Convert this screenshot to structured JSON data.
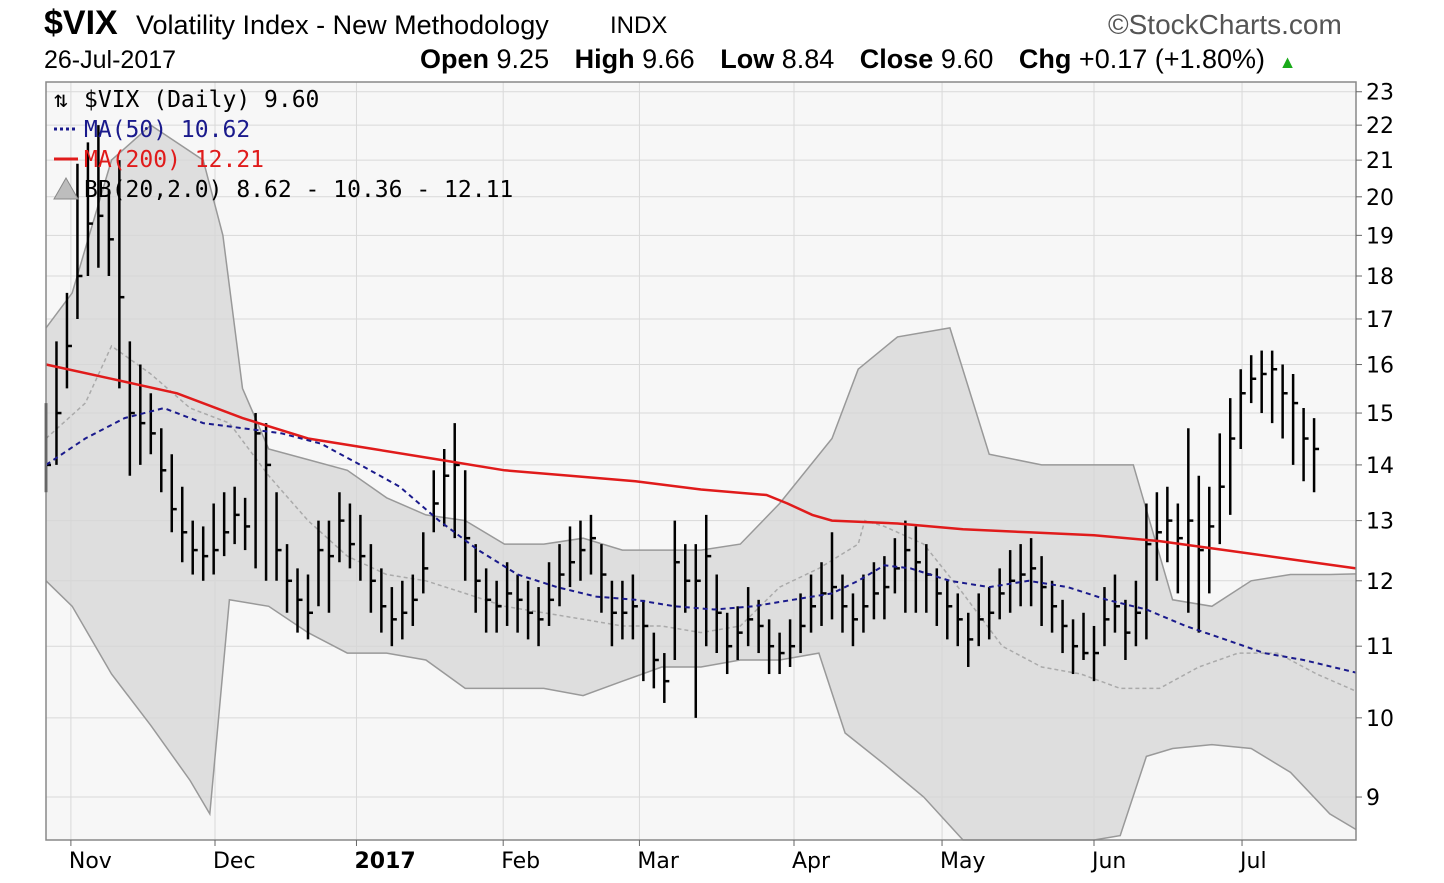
{
  "header": {
    "symbol": "$VIX",
    "name": "Volatility Index - New Methodology",
    "exchange": "INDX",
    "brand": "©StockCharts.com",
    "date": "26-Jul-2017",
    "open_label": "Open",
    "open": "9.25",
    "high_label": "High",
    "high": "9.66",
    "low_label": "Low",
    "low": "8.84",
    "close_label": "Close",
    "close": "9.60",
    "chg_label": "Chg",
    "chg": "+0.17 (+1.80%)",
    "chg_icon": "up-triangle-icon"
  },
  "legend": {
    "price": "$VIX (Daily) 9.60",
    "ma50": "MA(50) 10.62",
    "ma200": "MA(200) 12.21",
    "bb": "BB(20,2.0) 8.62 - 10.36 - 12.11"
  },
  "colors": {
    "price": "#000000",
    "ma50": "#1a1a8c",
    "ma200": "#e01b1b",
    "bb_fill": "#d6d6d6",
    "bb_mid": "#aaaaaa",
    "grid": "#d9d9d9",
    "plot_bg": "#f7f7f7"
  },
  "chart_data": {
    "type": "ohlc_bar",
    "ylim": [
      8.5,
      23.3
    ],
    "ylog": true,
    "yticks": [
      9,
      10,
      11,
      12,
      13,
      14,
      15,
      16,
      17,
      18,
      19,
      20,
      21,
      22,
      23
    ],
    "xlim": [
      0,
      1.0
    ],
    "xticks": [
      {
        "label": "Nov",
        "x": 0.019,
        "bold": false
      },
      {
        "label": "Dec",
        "x": 0.129,
        "bold": false
      },
      {
        "label": "2017",
        "x": 0.237,
        "bold": true
      },
      {
        "label": "Feb",
        "x": 0.349,
        "bold": false
      },
      {
        "label": "Mar",
        "x": 0.453,
        "bold": false
      },
      {
        "label": "Apr",
        "x": 0.571,
        "bold": false
      },
      {
        "label": "May",
        "x": 0.684,
        "bold": false
      },
      {
        "label": "Jun",
        "x": 0.8,
        "bold": false
      },
      {
        "label": "Jul",
        "x": 0.913,
        "bold": false
      }
    ],
    "ma200": [
      [
        0,
        16.0
      ],
      [
        0.05,
        15.7
      ],
      [
        0.1,
        15.4
      ],
      [
        0.15,
        14.9
      ],
      [
        0.2,
        14.5
      ],
      [
        0.25,
        14.3
      ],
      [
        0.3,
        14.1
      ],
      [
        0.35,
        13.9
      ],
      [
        0.4,
        13.8
      ],
      [
        0.45,
        13.7
      ],
      [
        0.5,
        13.55
      ],
      [
        0.55,
        13.45
      ],
      [
        0.566,
        13.3
      ],
      [
        0.585,
        13.1
      ],
      [
        0.6,
        13.0
      ],
      [
        0.65,
        12.95
      ],
      [
        0.7,
        12.85
      ],
      [
        0.75,
        12.8
      ],
      [
        0.8,
        12.75
      ],
      [
        0.85,
        12.65
      ],
      [
        0.9,
        12.5
      ],
      [
        0.95,
        12.35
      ],
      [
        1.0,
        12.2
      ]
    ],
    "ma50": [
      [
        0,
        14.0
      ],
      [
        0.03,
        14.5
      ],
      [
        0.06,
        14.9
      ],
      [
        0.09,
        15.1
      ],
      [
        0.12,
        14.8
      ],
      [
        0.15,
        14.7
      ],
      [
        0.18,
        14.6
      ],
      [
        0.21,
        14.4
      ],
      [
        0.24,
        14.0
      ],
      [
        0.27,
        13.6
      ],
      [
        0.3,
        13.0
      ],
      [
        0.33,
        12.5
      ],
      [
        0.36,
        12.1
      ],
      [
        0.39,
        11.9
      ],
      [
        0.42,
        11.75
      ],
      [
        0.45,
        11.7
      ],
      [
        0.48,
        11.6
      ],
      [
        0.51,
        11.55
      ],
      [
        0.54,
        11.6
      ],
      [
        0.57,
        11.7
      ],
      [
        0.6,
        11.8
      ],
      [
        0.62,
        12.0
      ],
      [
        0.64,
        12.25
      ],
      [
        0.66,
        12.2
      ],
      [
        0.69,
        12.0
      ],
      [
        0.72,
        11.9
      ],
      [
        0.75,
        12.0
      ],
      [
        0.78,
        11.9
      ],
      [
        0.81,
        11.7
      ],
      [
        0.84,
        11.55
      ],
      [
        0.87,
        11.3
      ],
      [
        0.9,
        11.1
      ],
      [
        0.93,
        10.9
      ],
      [
        0.96,
        10.8
      ],
      [
        1.0,
        10.62
      ]
    ],
    "bb_mid": [
      [
        0,
        14.5
      ],
      [
        0.03,
        15.2
      ],
      [
        0.05,
        16.4
      ],
      [
        0.08,
        15.8
      ],
      [
        0.11,
        15.1
      ],
      [
        0.14,
        14.8
      ],
      [
        0.17,
        13.8
      ],
      [
        0.2,
        13.0
      ],
      [
        0.23,
        12.4
      ],
      [
        0.26,
        12.1
      ],
      [
        0.29,
        12.0
      ],
      [
        0.32,
        11.8
      ],
      [
        0.35,
        11.6
      ],
      [
        0.38,
        11.5
      ],
      [
        0.41,
        11.4
      ],
      [
        0.44,
        11.3
      ],
      [
        0.47,
        11.3
      ],
      [
        0.5,
        11.2
      ],
      [
        0.53,
        11.3
      ],
      [
        0.56,
        11.9
      ],
      [
        0.59,
        12.2
      ],
      [
        0.62,
        12.6
      ],
      [
        0.625,
        13.0
      ],
      [
        0.64,
        12.9
      ],
      [
        0.67,
        12.6
      ],
      [
        0.7,
        11.8
      ],
      [
        0.73,
        11.0
      ],
      [
        0.76,
        10.7
      ],
      [
        0.79,
        10.6
      ],
      [
        0.82,
        10.4
      ],
      [
        0.85,
        10.4
      ],
      [
        0.88,
        10.7
      ],
      [
        0.91,
        10.9
      ],
      [
        0.94,
        10.9
      ],
      [
        0.97,
        10.6
      ],
      [
        1.0,
        10.36
      ]
    ],
    "bb_upper": [
      [
        0,
        16.8
      ],
      [
        0.02,
        17.6
      ],
      [
        0.05,
        21.0
      ],
      [
        0.08,
        22.0
      ],
      [
        0.12,
        21.0
      ],
      [
        0.135,
        19.0
      ],
      [
        0.15,
        15.5
      ],
      [
        0.17,
        14.3
      ],
      [
        0.2,
        14.1
      ],
      [
        0.23,
        13.9
      ],
      [
        0.26,
        13.4
      ],
      [
        0.29,
        13.1
      ],
      [
        0.32,
        13.0
      ],
      [
        0.35,
        12.6
      ],
      [
        0.38,
        12.6
      ],
      [
        0.41,
        12.7
      ],
      [
        0.44,
        12.5
      ],
      [
        0.47,
        12.5
      ],
      [
        0.5,
        12.5
      ],
      [
        0.53,
        12.6
      ],
      [
        0.56,
        13.3
      ],
      [
        0.6,
        14.5
      ],
      [
        0.62,
        15.9
      ],
      [
        0.65,
        16.6
      ],
      [
        0.69,
        16.8
      ],
      [
        0.72,
        14.2
      ],
      [
        0.76,
        14.0
      ],
      [
        0.8,
        14.0
      ],
      [
        0.83,
        14.0
      ],
      [
        0.86,
        11.7
      ],
      [
        0.89,
        11.6
      ],
      [
        0.92,
        12.0
      ],
      [
        0.95,
        12.1
      ],
      [
        0.98,
        12.1
      ],
      [
        1.0,
        12.11
      ]
    ],
    "bb_lower": [
      [
        0,
        12.0
      ],
      [
        0.02,
        11.6
      ],
      [
        0.05,
        10.6
      ],
      [
        0.08,
        9.9
      ],
      [
        0.11,
        9.2
      ],
      [
        0.125,
        8.8
      ],
      [
        0.14,
        11.7
      ],
      [
        0.17,
        11.6
      ],
      [
        0.2,
        11.2
      ],
      [
        0.23,
        10.9
      ],
      [
        0.26,
        10.9
      ],
      [
        0.29,
        10.8
      ],
      [
        0.32,
        10.4
      ],
      [
        0.35,
        10.4
      ],
      [
        0.38,
        10.4
      ],
      [
        0.41,
        10.3
      ],
      [
        0.44,
        10.5
      ],
      [
        0.47,
        10.7
      ],
      [
        0.5,
        10.7
      ],
      [
        0.53,
        10.8
      ],
      [
        0.56,
        10.8
      ],
      [
        0.59,
        10.9
      ],
      [
        0.61,
        9.8
      ],
      [
        0.64,
        9.4
      ],
      [
        0.67,
        9.0
      ],
      [
        0.7,
        8.5
      ],
      [
        0.8,
        8.5
      ],
      [
        0.82,
        8.55
      ],
      [
        0.84,
        9.5
      ],
      [
        0.86,
        9.6
      ],
      [
        0.89,
        9.65
      ],
      [
        0.92,
        9.6
      ],
      [
        0.95,
        9.3
      ],
      [
        0.98,
        8.8
      ],
      [
        1.0,
        8.62
      ]
    ],
    "bars": [
      [
        0.0,
        14.0,
        15.2,
        13.5
      ],
      [
        0.008,
        15.0,
        16.5,
        14.0
      ],
      [
        0.016,
        16.4,
        17.6,
        15.5
      ],
      [
        0.024,
        18.0,
        20.9,
        17.0
      ],
      [
        0.032,
        19.3,
        21.5,
        18.0
      ],
      [
        0.04,
        19.5,
        22.0,
        18.2
      ],
      [
        0.048,
        18.9,
        20.2,
        18.0
      ],
      [
        0.056,
        17.5,
        21.0,
        15.5
      ],
      [
        0.064,
        15.0,
        16.5,
        13.8
      ],
      [
        0.072,
        14.8,
        16.0,
        14.0
      ],
      [
        0.08,
        14.6,
        15.4,
        14.2
      ],
      [
        0.088,
        13.9,
        14.7,
        13.5
      ],
      [
        0.096,
        13.2,
        14.2,
        12.8
      ],
      [
        0.104,
        12.8,
        13.6,
        12.3
      ],
      [
        0.112,
        12.5,
        13.0,
        12.1
      ],
      [
        0.12,
        12.4,
        12.9,
        12.0
      ],
      [
        0.128,
        12.5,
        13.3,
        12.1
      ],
      [
        0.136,
        12.8,
        13.5,
        12.4
      ],
      [
        0.144,
        13.1,
        13.6,
        12.6
      ],
      [
        0.152,
        12.9,
        13.4,
        12.5
      ],
      [
        0.16,
        14.6,
        15.0,
        12.2
      ],
      [
        0.168,
        14.0,
        14.8,
        12.0
      ],
      [
        0.176,
        12.5,
        13.5,
        12.0
      ],
      [
        0.184,
        12.0,
        12.6,
        11.5
      ],
      [
        0.192,
        11.7,
        12.2,
        11.2
      ],
      [
        0.2,
        11.5,
        12.1,
        11.1
      ],
      [
        0.208,
        12.5,
        13.0,
        11.6
      ],
      [
        0.216,
        12.4,
        13.0,
        11.5
      ],
      [
        0.224,
        13.0,
        13.5,
        12.3
      ],
      [
        0.232,
        12.6,
        13.3,
        12.2
      ],
      [
        0.24,
        12.4,
        13.1,
        12.0
      ],
      [
        0.248,
        12.0,
        12.6,
        11.5
      ],
      [
        0.256,
        11.6,
        12.2,
        11.2
      ],
      [
        0.264,
        11.4,
        11.9,
        11.0
      ],
      [
        0.272,
        11.5,
        12.0,
        11.1
      ],
      [
        0.28,
        11.7,
        12.1,
        11.3
      ],
      [
        0.288,
        12.2,
        12.8,
        11.8
      ],
      [
        0.296,
        13.3,
        13.9,
        12.8
      ],
      [
        0.304,
        13.8,
        14.3,
        12.9
      ],
      [
        0.312,
        14.0,
        14.8,
        12.7
      ],
      [
        0.32,
        12.7,
        13.9,
        12.0
      ],
      [
        0.328,
        12.0,
        12.6,
        11.5
      ],
      [
        0.336,
        11.7,
        12.2,
        11.2
      ],
      [
        0.344,
        11.6,
        12.0,
        11.2
      ],
      [
        0.352,
        11.8,
        12.3,
        11.3
      ],
      [
        0.36,
        11.7,
        12.1,
        11.2
      ],
      [
        0.368,
        11.5,
        12.0,
        11.1
      ],
      [
        0.376,
        11.4,
        11.9,
        11.0
      ],
      [
        0.384,
        11.7,
        12.3,
        11.3
      ],
      [
        0.392,
        12.1,
        12.6,
        11.6
      ],
      [
        0.4,
        12.3,
        12.9,
        11.9
      ],
      [
        0.408,
        12.5,
        13.0,
        12.0
      ],
      [
        0.416,
        12.7,
        13.1,
        12.1
      ],
      [
        0.424,
        12.1,
        12.6,
        11.5
      ],
      [
        0.432,
        11.5,
        12.0,
        11.0
      ],
      [
        0.44,
        11.5,
        12.0,
        11.1
      ],
      [
        0.448,
        11.6,
        12.1,
        11.1
      ],
      [
        0.456,
        11.3,
        11.7,
        10.5
      ],
      [
        0.464,
        10.8,
        11.2,
        10.4
      ],
      [
        0.472,
        10.5,
        10.9,
        10.2
      ],
      [
        0.48,
        12.3,
        13.0,
        10.8
      ],
      [
        0.488,
        12.0,
        12.6,
        11.5
      ],
      [
        0.496,
        12.0,
        12.6,
        10.0
      ],
      [
        0.504,
        12.4,
        13.1,
        11.0
      ],
      [
        0.512,
        11.5,
        12.1,
        10.9
      ],
      [
        0.52,
        11.0,
        11.5,
        10.6
      ],
      [
        0.528,
        11.2,
        11.6,
        10.8
      ],
      [
        0.536,
        11.4,
        11.9,
        11.0
      ],
      [
        0.544,
        11.3,
        11.7,
        10.9
      ],
      [
        0.552,
        11.0,
        11.4,
        10.6
      ],
      [
        0.56,
        10.9,
        11.2,
        10.6
      ],
      [
        0.568,
        11.0,
        11.4,
        10.7
      ],
      [
        0.576,
        11.3,
        11.8,
        10.9
      ],
      [
        0.584,
        11.6,
        12.1,
        11.2
      ],
      [
        0.592,
        11.8,
        12.3,
        11.3
      ],
      [
        0.6,
        11.9,
        12.8,
        11.4
      ],
      [
        0.608,
        11.6,
        12.1,
        11.2
      ],
      [
        0.616,
        11.4,
        11.8,
        11.0
      ],
      [
        0.624,
        11.6,
        12.1,
        11.2
      ],
      [
        0.632,
        11.8,
        12.3,
        11.4
      ],
      [
        0.64,
        11.9,
        12.4,
        11.4
      ],
      [
        0.648,
        12.2,
        12.7,
        11.8
      ],
      [
        0.656,
        12.5,
        13.0,
        11.5
      ],
      [
        0.664,
        12.3,
        12.9,
        11.5
      ],
      [
        0.672,
        12.1,
        12.6,
        11.5
      ],
      [
        0.68,
        11.8,
        12.2,
        11.3
      ],
      [
        0.688,
        11.6,
        12.0,
        11.1
      ],
      [
        0.696,
        11.4,
        11.8,
        11.0
      ],
      [
        0.704,
        11.1,
        11.5,
        10.7
      ],
      [
        0.712,
        11.4,
        11.8,
        11.0
      ],
      [
        0.72,
        11.5,
        11.9,
        11.1
      ],
      [
        0.728,
        11.8,
        12.2,
        11.4
      ],
      [
        0.736,
        12.0,
        12.5,
        11.5
      ],
      [
        0.744,
        12.1,
        12.6,
        11.6
      ],
      [
        0.752,
        12.2,
        12.7,
        11.6
      ],
      [
        0.76,
        11.9,
        12.4,
        11.3
      ],
      [
        0.768,
        11.6,
        12.0,
        11.2
      ],
      [
        0.776,
        11.3,
        11.7,
        10.9
      ],
      [
        0.784,
        11.0,
        11.4,
        10.6
      ],
      [
        0.792,
        10.9,
        11.5,
        10.8
      ],
      [
        0.8,
        10.9,
        11.3,
        10.5
      ],
      [
        0.808,
        11.4,
        11.9,
        11.0
      ],
      [
        0.816,
        11.6,
        12.1,
        11.2
      ],
      [
        0.824,
        11.2,
        11.7,
        10.8
      ],
      [
        0.832,
        11.5,
        12.0,
        11.0
      ],
      [
        0.84,
        12.6,
        13.3,
        11.1
      ],
      [
        0.848,
        12.8,
        13.5,
        12.0
      ],
      [
        0.856,
        13.0,
        13.6,
        12.3
      ],
      [
        0.864,
        12.7,
        13.3,
        11.8
      ],
      [
        0.872,
        13.0,
        14.7,
        11.5
      ],
      [
        0.88,
        12.5,
        13.8,
        11.2
      ],
      [
        0.888,
        12.9,
        13.6,
        11.8
      ],
      [
        0.896,
        13.6,
        14.6,
        12.6
      ],
      [
        0.904,
        14.5,
        15.3,
        13.1
      ],
      [
        0.912,
        15.4,
        15.9,
        14.3
      ],
      [
        0.92,
        15.7,
        16.2,
        15.2
      ],
      [
        0.928,
        15.8,
        16.3,
        15.0
      ],
      [
        0.936,
        15.9,
        16.3,
        14.8
      ],
      [
        0.944,
        15.4,
        16.0,
        14.5
      ],
      [
        0.952,
        15.2,
        15.8,
        14.0
      ],
      [
        0.96,
        14.5,
        15.1,
        13.7
      ],
      [
        0.968,
        14.3,
        14.9,
        13.5
      ]
    ]
  }
}
